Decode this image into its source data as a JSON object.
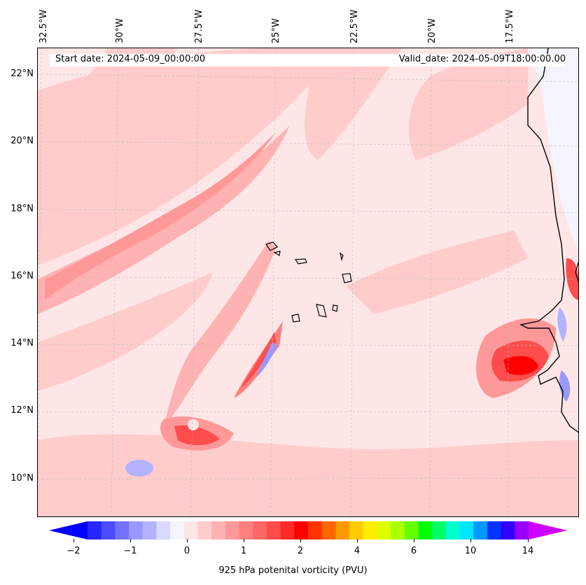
{
  "map": {
    "lon_labels": [
      "32.5°W",
      "30°W",
      "27.5°W",
      "25°W",
      "22.5°W",
      "20°W",
      "17.5°W"
    ],
    "lat_labels": [
      "22°N",
      "20°N",
      "18°N",
      "16°N",
      "14°N",
      "12°N",
      "10°N"
    ],
    "start_date": "Start date: 2024-05-09_00:00:00",
    "valid_date": "Valid_date: 2024-05-09T18:00:00.00"
  },
  "colorbar": {
    "tick_labels": [
      "−2",
      "−1",
      "0",
      "1",
      "2",
      "4",
      "6",
      "10",
      "14"
    ],
    "label": "925 hPa potenital vorticity (PVU)",
    "colors": [
      "#0000ff",
      "#2626ff",
      "#4c4cff",
      "#7272ff",
      "#9898ff",
      "#b2b2ff",
      "#d8d8ff",
      "#f4f4ff",
      "#ffe6e6",
      "#ffcccc",
      "#ffb2b2",
      "#ff9999",
      "#ff7f7f",
      "#ff6666",
      "#ff4c4c",
      "#ff2a2a",
      "#ff0000",
      "#ff3300",
      "#ff6600",
      "#ff9900",
      "#ffcc00",
      "#ffee00",
      "#ddff00",
      "#aaff00",
      "#66ff00",
      "#00ff00",
      "#00ff66",
      "#00ffcc",
      "#00e5ff",
      "#0099ff",
      "#0033ff",
      "#3300ff",
      "#9900ff",
      "#cc00ff"
    ]
  }
}
